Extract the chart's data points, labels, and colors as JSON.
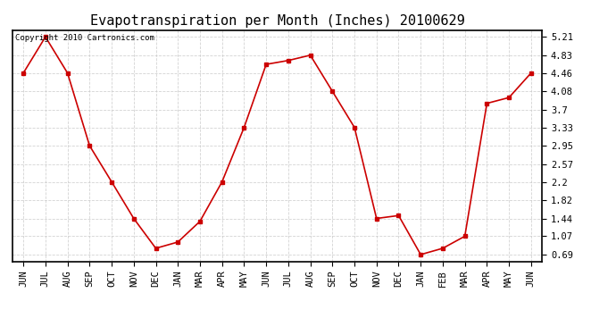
{
  "title": "Evapotranspiration per Month (Inches) 20100629",
  "copyright_text": "Copyright 2010 Cartronics.com",
  "months": [
    "JUN",
    "JUL",
    "AUG",
    "SEP",
    "OCT",
    "NOV",
    "DEC",
    "JAN",
    "MAR",
    "APR",
    "MAY",
    "JUN",
    "JUL",
    "AUG",
    "SEP",
    "OCT",
    "NOV",
    "DEC",
    "JAN",
    "FEB",
    "MAR",
    "APR",
    "MAY",
    "JUN"
  ],
  "values": [
    4.46,
    5.21,
    4.46,
    2.95,
    2.2,
    1.44,
    0.82,
    0.95,
    1.38,
    2.2,
    3.33,
    4.64,
    4.72,
    4.83,
    4.08,
    3.33,
    1.44,
    1.5,
    0.69,
    0.82,
    1.07,
    3.83,
    3.95,
    4.46
  ],
  "yticks": [
    0.69,
    1.07,
    1.44,
    1.82,
    2.2,
    2.57,
    2.95,
    3.33,
    3.7,
    4.08,
    4.46,
    4.83,
    5.21
  ],
  "line_color": "#cc0000",
  "marker": "s",
  "marker_size": 3,
  "background_color": "#ffffff",
  "grid_color": "#c8c8c8",
  "title_fontsize": 11,
  "copyright_fontsize": 6.5,
  "tick_fontsize": 7.5,
  "ylim_min": 0.55,
  "ylim_max": 5.35
}
